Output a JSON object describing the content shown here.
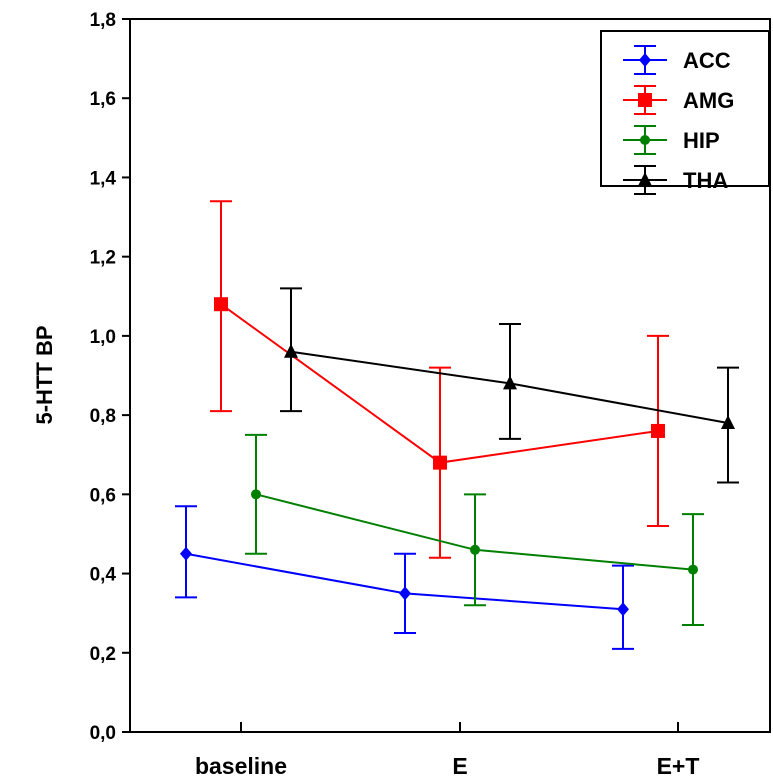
{
  "chart_data": {
    "type": "line",
    "title": "",
    "xlabel": "",
    "ylabel": "5-HTT BP",
    "categories": [
      "baseline",
      "E",
      "E+T"
    ],
    "ylim": [
      0.0,
      1.8
    ],
    "yticks": [
      "0,0",
      "0,2",
      "0,4",
      "0,6",
      "0,8",
      "1,0",
      "1,2",
      "1,4",
      "1,6",
      "1,8"
    ],
    "grid": false,
    "legend_position": "top-right",
    "error_bars": true,
    "series": [
      {
        "name": "ACC",
        "color": "#0000ff",
        "marker": "diamond",
        "values": [
          0.45,
          0.35,
          0.31
        ],
        "error_low": [
          0.34,
          0.25,
          0.21
        ],
        "error_high": [
          0.57,
          0.45,
          0.42
        ]
      },
      {
        "name": "AMG",
        "color": "#ff0000",
        "marker": "square",
        "values": [
          1.08,
          0.68,
          0.76
        ],
        "error_low": [
          0.81,
          0.44,
          0.52
        ],
        "error_high": [
          1.34,
          0.92,
          1.0
        ]
      },
      {
        "name": "HIP",
        "color": "#008000",
        "marker": "circle",
        "values": [
          0.6,
          0.46,
          0.41
        ],
        "error_low": [
          0.45,
          0.32,
          0.27
        ],
        "error_high": [
          0.75,
          0.6,
          0.55
        ]
      },
      {
        "name": "THA",
        "color": "#000000",
        "marker": "triangle",
        "values": [
          0.96,
          0.88,
          0.78
        ],
        "error_low": [
          0.81,
          0.74,
          0.63
        ],
        "error_high": [
          1.12,
          1.03,
          0.92
        ]
      }
    ]
  }
}
